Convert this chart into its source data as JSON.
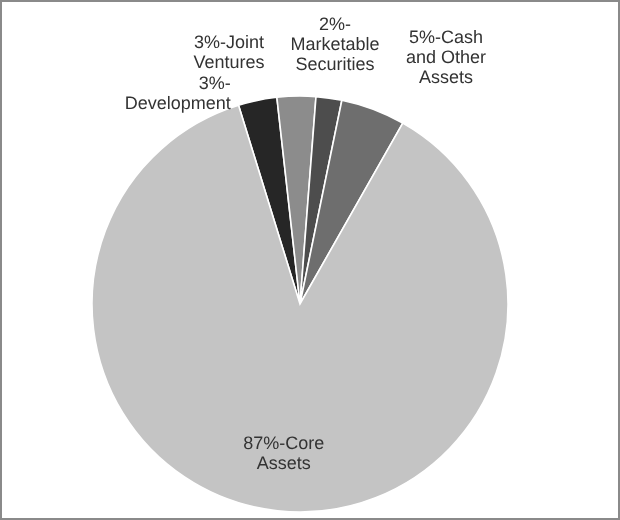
{
  "chart_data": {
    "type": "pie",
    "categories": [
      "3%-Development",
      "3%-Joint Ventures",
      "2%-Marketable Securities",
      "5%-Cash and Other Assets",
      "87%-Core Assets"
    ],
    "values": [
      3,
      3,
      2,
      5,
      87
    ],
    "colors": [
      "#262626",
      "#8c8c8c",
      "#4d4d4d",
      "#6e6e6e",
      "#c4c4c4"
    ]
  }
}
